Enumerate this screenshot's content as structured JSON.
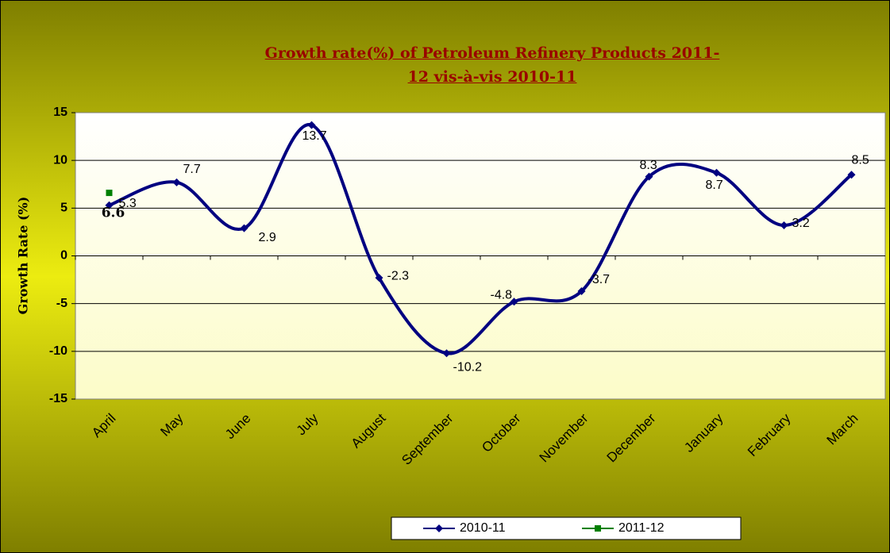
{
  "chart_data": {
    "type": "line",
    "title": "Growth rate(%) of Petroleum Refinery Products 2011-12 vis-à-vis 2010-11",
    "y_label": "Growth Rate (%)",
    "categories": [
      "April",
      "May",
      "June",
      "July",
      "August",
      "September",
      "October",
      "November",
      "December",
      "January",
      "February",
      "March"
    ],
    "series": [
      {
        "name": "2010-11",
        "color": "#000080",
        "marker": "diamond",
        "values": [
          5.3,
          7.7,
          2.9,
          13.7,
          -2.3,
          -10.2,
          -4.8,
          -3.7,
          8.3,
          8.7,
          3.2,
          8.5
        ]
      },
      {
        "name": "2011-12",
        "color": "#008000",
        "marker": "square",
        "values": [
          6.6,
          null,
          null,
          null,
          null,
          null,
          null,
          null,
          null,
          null,
          null,
          null
        ]
      }
    ],
    "ylim": [
      -15,
      15
    ],
    "yticks": [
      -15,
      -10,
      -5,
      0,
      5,
      10,
      15
    ],
    "grid": true,
    "smooth": true,
    "legend": "bottom"
  }
}
